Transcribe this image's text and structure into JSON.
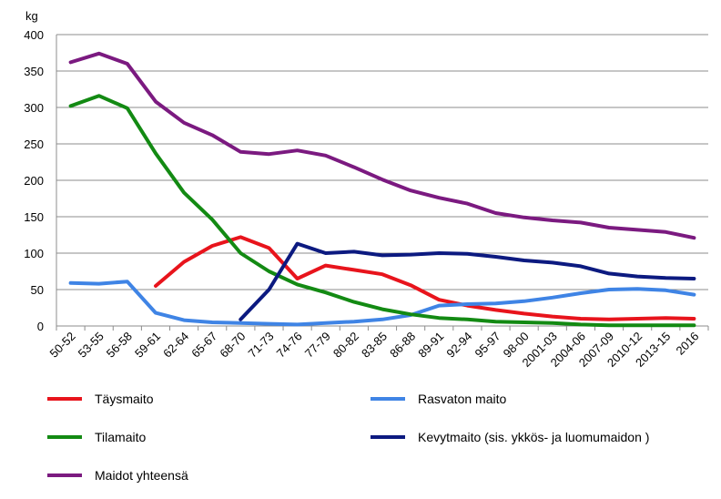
{
  "chart_data": {
    "type": "line",
    "y_unit": "kg",
    "ylim": [
      0,
      400
    ],
    "yticks": [
      0,
      50,
      100,
      150,
      200,
      250,
      300,
      350,
      400
    ],
    "grid": "horizontal",
    "legend_position": "bottom",
    "categories": [
      "50-52",
      "53-55",
      "56-58",
      "59-61",
      "62-64",
      "65-67",
      "68-70",
      "71-73",
      "74-76",
      "77-79",
      "80-82",
      "83-85",
      "86-88",
      "89-91",
      "92-94",
      "95-97",
      "98-00",
      "2001-03",
      "2004-06",
      "2007-09",
      "2010-12",
      "2013-15",
      "2016"
    ],
    "series": [
      {
        "name": "Täysmaito",
        "color": "#e8141c",
        "values": [
          null,
          null,
          null,
          55,
          88,
          110,
          122,
          107,
          65,
          83,
          77,
          71,
          56,
          36,
          28,
          22,
          17,
          13,
          10,
          9,
          10,
          11,
          10
        ]
      },
      {
        "name": "Rasvaton maito",
        "color": "#3f84e5",
        "values": [
          59,
          58,
          61,
          18,
          8,
          5,
          4,
          3,
          2,
          4,
          6,
          9,
          15,
          28,
          30,
          31,
          34,
          39,
          45,
          50,
          51,
          49,
          43
        ]
      },
      {
        "name": "Tilamaito",
        "color": "#138a13",
        "values": [
          302,
          316,
          299,
          237,
          183,
          146,
          100,
          75,
          57,
          46,
          33,
          23,
          16,
          11,
          9,
          6,
          5,
          4,
          2,
          1,
          1,
          1,
          1
        ]
      },
      {
        "name": "Kevytmaito (sis. ykkös- ja luomumaidon )",
        "color": "#0c1a80",
        "values": [
          null,
          null,
          null,
          null,
          null,
          null,
          9,
          50,
          113,
          100,
          102,
          97,
          98,
          100,
          99,
          95,
          90,
          87,
          82,
          72,
          68,
          66,
          65
        ]
      },
      {
        "name": "Maidot yhteensä",
        "color": "#7b1a80",
        "values": [
          362,
          374,
          360,
          308,
          279,
          262,
          239,
          236,
          241,
          234,
          218,
          201,
          186,
          176,
          168,
          155,
          149,
          145,
          142,
          135,
          132,
          129,
          121
        ]
      }
    ]
  }
}
